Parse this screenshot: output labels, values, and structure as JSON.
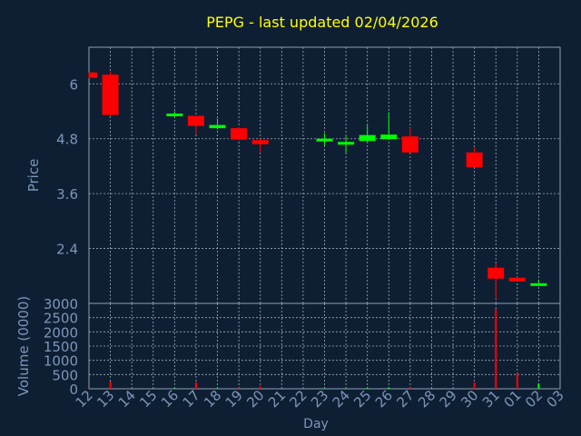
{
  "chart_data": [
    {
      "type": "candlestick",
      "title": "PEPG - last updated 02/04/2026",
      "ylabel": "Price",
      "ylim": [
        1.2,
        6.8
      ],
      "yticks": [
        2.4,
        3.6,
        4.8,
        6
      ],
      "ytick_labels": [
        "2.4",
        "3.6",
        "4.8",
        "6"
      ],
      "grid": true,
      "colors": {
        "up": "#00ff00",
        "down": "#ff0000",
        "background": "#0f1f33",
        "grid": "#d0d8e0",
        "text": "#7b96b8",
        "title": "#ffff00"
      },
      "candles": [
        {
          "day": "12",
          "open": 6.25,
          "high": 6.25,
          "low": 6.12,
          "close": 6.13
        },
        {
          "day": "13",
          "open": 6.2,
          "high": 6.27,
          "low": 5.3,
          "close": 5.32
        },
        {
          "day": "16",
          "open": 5.3,
          "high": 5.4,
          "low": 5.28,
          "close": 5.35
        },
        {
          "day": "17",
          "open": 5.3,
          "high": 5.3,
          "low": 4.89,
          "close": 5.08
        },
        {
          "day": "18",
          "open": 5.03,
          "high": 5.24,
          "low": 5.0,
          "close": 5.1
        },
        {
          "day": "19",
          "open": 5.03,
          "high": 5.05,
          "low": 4.76,
          "close": 4.78
        },
        {
          "day": "20",
          "open": 4.77,
          "high": 4.8,
          "low": 4.5,
          "close": 4.68
        },
        {
          "day": "23",
          "open": 4.75,
          "high": 4.92,
          "low": 4.65,
          "close": 4.8
        },
        {
          "day": "24",
          "open": 4.71,
          "high": 4.85,
          "low": 4.5,
          "close": 4.73
        },
        {
          "day": "25",
          "open": 4.75,
          "high": 5.1,
          "low": 4.73,
          "close": 4.88
        },
        {
          "day": "26",
          "open": 4.79,
          "high": 5.38,
          "low": 4.79,
          "close": 4.89
        },
        {
          "day": "27",
          "open": 4.85,
          "high": 5.04,
          "low": 4.5,
          "close": 4.5
        },
        {
          "day": "30",
          "open": 4.5,
          "high": 4.6,
          "low": 4.18,
          "close": 4.18
        },
        {
          "day": "31",
          "open": 1.98,
          "high": 2.08,
          "low": 1.3,
          "close": 1.74
        },
        {
          "day": "01",
          "open": 1.76,
          "high": 1.76,
          "low": 1.67,
          "close": 1.68
        },
        {
          "day": "02",
          "open": 1.6,
          "high": 1.72,
          "low": 1.58,
          "close": 1.64
        }
      ]
    },
    {
      "type": "bar",
      "ylabel": "Volume (0000)",
      "xlabel": "Day",
      "ylim": [
        0,
        3000
      ],
      "yticks": [
        0,
        500,
        1000,
        1500,
        2000,
        2500,
        3000
      ],
      "ytick_labels": [
        "0",
        "500",
        "1000",
        "1500",
        "2000",
        "2500",
        "3000"
      ],
      "categories": [
        "12",
        "13",
        "14",
        "15",
        "16",
        "17",
        "18",
        "19",
        "20",
        "21",
        "22",
        "23",
        "24",
        "25",
        "26",
        "27",
        "28",
        "29",
        "30",
        "31",
        "01",
        "02",
        "03"
      ],
      "series": [
        {
          "values": [
            10,
            260,
            0,
            0,
            20,
            230,
            20,
            20,
            80,
            0,
            0,
            20,
            20,
            30,
            40,
            30,
            0,
            0,
            220,
            2800,
            550,
            180,
            0
          ],
          "colors": [
            "#ff0000",
            "#ff0000",
            "#ff0000",
            "#ff0000",
            "#00ff00",
            "#ff0000",
            "#00ff00",
            "#ff0000",
            "#ff0000",
            "#ff0000",
            "#ff0000",
            "#00ff00",
            "#00ff00",
            "#00ff00",
            "#00ff00",
            "#ff0000",
            "#ff0000",
            "#ff0000",
            "#ff0000",
            "#ff0000",
            "#ff0000",
            "#00ff00",
            "#ff0000"
          ]
        }
      ]
    }
  ]
}
